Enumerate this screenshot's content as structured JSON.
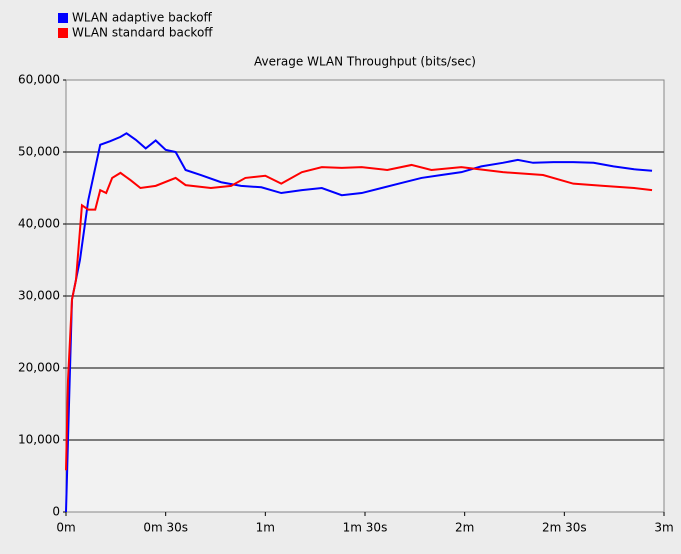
{
  "chart_data": {
    "type": "line",
    "title": "Average WLAN Throughput (bits/sec)",
    "series": [
      {
        "name": "WLAN adaptive backoff",
        "color": "#0000ff",
        "x": [
          0,
          0.6,
          1.8,
          4.2,
          6.7,
          10.3,
          13.3,
          16.4,
          18.2,
          21,
          24,
          27,
          30,
          33,
          36,
          40.6,
          46.7,
          52.7,
          58.8,
          64.8,
          71,
          77,
          83,
          89,
          95,
          101,
          107,
          113,
          119,
          125,
          131.5,
          136,
          140.6,
          146.7,
          152.7,
          158.8,
          164.8,
          171,
          176.4
        ],
        "values": [
          0,
          10000,
          29500,
          35000,
          43300,
          51000,
          51500,
          52100,
          52600,
          51700,
          50500,
          51600,
          50300,
          50000,
          47500,
          46800,
          45800,
          45300,
          45100,
          44300,
          44700,
          45000,
          44000,
          44300,
          45000,
          45700,
          46400,
          46800,
          47200,
          48000,
          48500,
          48900,
          48500,
          48600,
          48600,
          48500,
          48000,
          47600,
          47400
        ]
      },
      {
        "name": "WLAN standard backoff",
        "color": "#ff0000",
        "x": [
          0,
          0.6,
          1.8,
          3,
          4.8,
          6.7,
          8.8,
          10.3,
          12.1,
          13.9,
          16.4,
          19.4,
          22.4,
          27,
          33,
          36,
          43.6,
          49.7,
          54,
          60,
          64.8,
          71,
          77,
          83,
          89,
          96.7,
          104,
          110,
          119,
          131.5,
          143.6,
          152.7,
          161.8,
          171,
          176.4
        ],
        "values": [
          5800,
          18300,
          29500,
          32200,
          42600,
          42000,
          42000,
          44700,
          44300,
          46400,
          47100,
          46100,
          45000,
          45300,
          46400,
          45400,
          45000,
          45300,
          46400,
          46700,
          45600,
          47200,
          47900,
          47800,
          47900,
          47500,
          48200,
          47500,
          47900,
          47200,
          46800,
          45600,
          45300,
          45000,
          44700
        ]
      }
    ],
    "xlim": [
      0,
      180
    ],
    "xticks": [
      {
        "value": 0,
        "label": "0m"
      },
      {
        "value": 30,
        "label": "0m 30s"
      },
      {
        "value": 60,
        "label": "1m"
      },
      {
        "value": 90,
        "label": "1m 30s"
      },
      {
        "value": 120,
        "label": "2m"
      },
      {
        "value": 150,
        "label": "2m 30s"
      },
      {
        "value": 180,
        "label": "3m"
      }
    ],
    "ylim": [
      0,
      60000
    ],
    "yticks": [
      0,
      {
        "value": 10000,
        "label": "10,000"
      },
      {
        "value": 20000,
        "label": "20,000"
      },
      {
        "value": 30000,
        "label": "30,000"
      },
      {
        "value": 40000,
        "label": "40,000"
      },
      {
        "value": 50000,
        "label": "50,000"
      },
      {
        "value": 60000,
        "label": "60,000"
      }
    ],
    "grid": true,
    "legend": "top-left"
  }
}
